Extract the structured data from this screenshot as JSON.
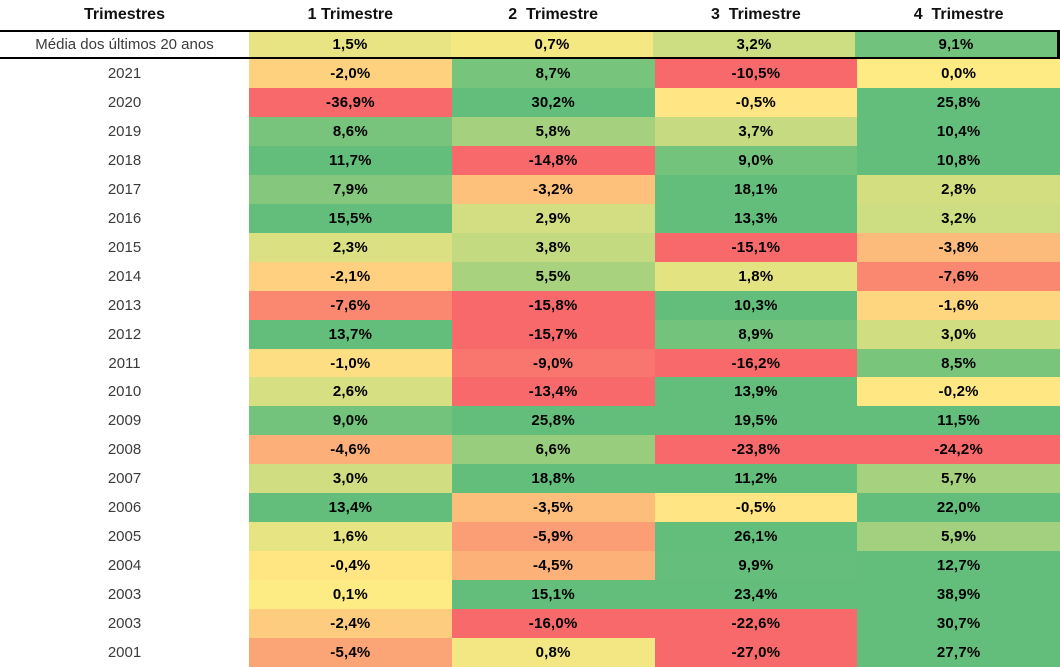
{
  "chart_data": {
    "type": "heatmap",
    "columns": [
      "Trimestres",
      "1 Trimestre",
      "2  Trimestre",
      "3  Trimestre",
      "4  Trimestre"
    ],
    "rows": [
      {
        "label": "Média dos últimos 20 anos",
        "values": [
          1.5,
          0.7,
          3.2,
          9.1
        ],
        "emphasized": true
      },
      {
        "label": "2021",
        "values": [
          -2.0,
          8.7,
          -10.5,
          0.0
        ]
      },
      {
        "label": "2020",
        "values": [
          -36.9,
          30.2,
          -0.5,
          25.8
        ]
      },
      {
        "label": "2019",
        "values": [
          8.6,
          5.8,
          3.7,
          10.4
        ]
      },
      {
        "label": "2018",
        "values": [
          11.7,
          -14.8,
          9.0,
          10.8
        ]
      },
      {
        "label": "2017",
        "values": [
          7.9,
          -3.2,
          18.1,
          2.8
        ]
      },
      {
        "label": "2016",
        "values": [
          15.5,
          2.9,
          13.3,
          3.2
        ]
      },
      {
        "label": "2015",
        "values": [
          2.3,
          3.8,
          -15.1,
          -3.8
        ]
      },
      {
        "label": "2014",
        "values": [
          -2.1,
          5.5,
          1.8,
          -7.6
        ]
      },
      {
        "label": "2013",
        "values": [
          -7.6,
          -15.8,
          10.3,
          -1.6
        ]
      },
      {
        "label": "2012",
        "values": [
          13.7,
          -15.7,
          8.9,
          3.0
        ]
      },
      {
        "label": "2011",
        "values": [
          -1.0,
          -9.0,
          -16.2,
          8.5
        ]
      },
      {
        "label": "2010",
        "values": [
          2.6,
          -13.4,
          13.9,
          -0.2
        ]
      },
      {
        "label": "2009",
        "values": [
          9.0,
          25.8,
          19.5,
          11.5
        ]
      },
      {
        "label": "2008",
        "values": [
          -4.6,
          6.6,
          -23.8,
          -24.2
        ]
      },
      {
        "label": "2007",
        "values": [
          3.0,
          18.8,
          11.2,
          5.7
        ]
      },
      {
        "label": "2006",
        "values": [
          13.4,
          -3.5,
          -0.5,
          22.0
        ]
      },
      {
        "label": "2005",
        "values": [
          1.6,
          -5.9,
          26.1,
          5.9
        ]
      },
      {
        "label": "2004",
        "values": [
          -0.4,
          -4.5,
          9.9,
          12.7
        ]
      },
      {
        "label": "2003",
        "values": [
          0.1,
          15.1,
          23.4,
          38.9
        ]
      },
      {
        "label": "2003",
        "values": [
          -2.4,
          -16.0,
          -22.6,
          30.7
        ]
      },
      {
        "label": "2001",
        "values": [
          -5.4,
          0.8,
          -27.0,
          27.7
        ]
      }
    ],
    "value_suffix": "%",
    "decimal_separator": ",",
    "decimals": 1,
    "grid": false,
    "legend": false,
    "colormap": {
      "min_value": -10,
      "mid_value": 0,
      "max_value": 10,
      "min_color": "#F8696B",
      "mid_color": "#FFEB84",
      "max_color": "#63BE7B",
      "clamp": true
    },
    "accent_border_color": "#000000"
  }
}
